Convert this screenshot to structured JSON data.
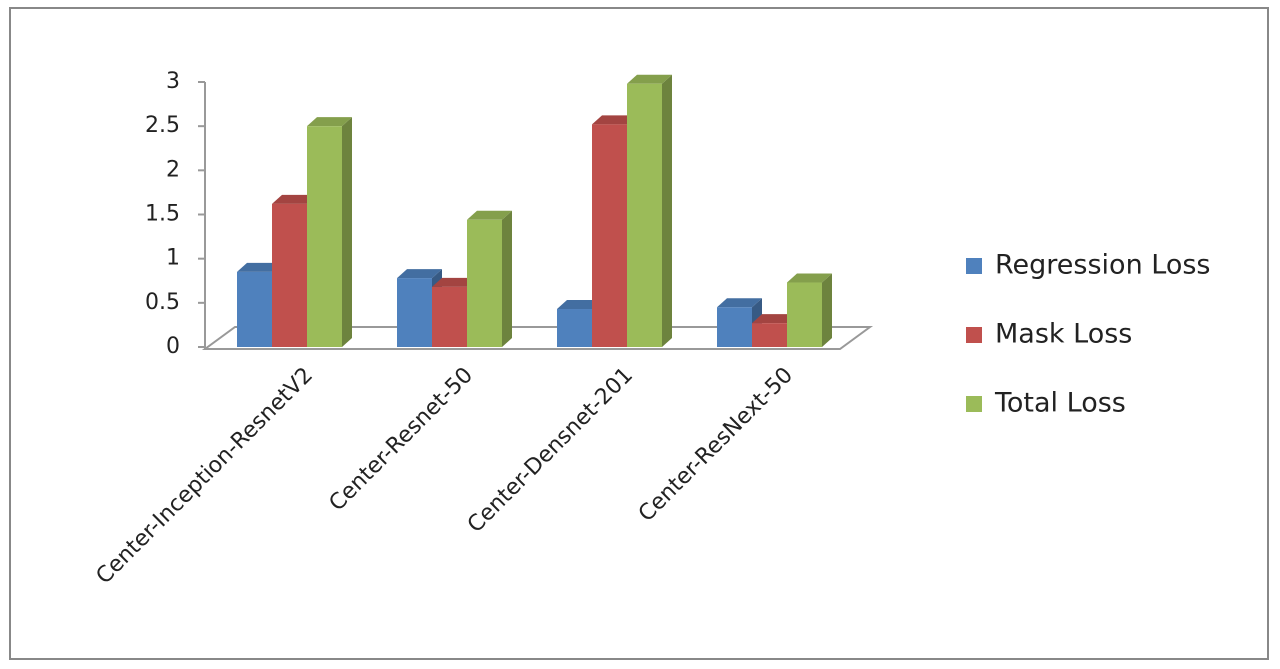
{
  "chart_data": {
    "type": "bar3d",
    "categories": [
      "Center-Inception-ResnetV2",
      "Center-Resnet-50",
      "Center-Densnet-201",
      "Center-ResNext-50"
    ],
    "series": [
      {
        "name": "Regression Loss",
        "color": "#4f81bd",
        "values": [
          0.85,
          0.78,
          0.43,
          0.45
        ]
      },
      {
        "name": "Mask Loss",
        "color": "#c0504d",
        "values": [
          1.62,
          0.68,
          2.52,
          0.27
        ]
      },
      {
        "name": "Total Loss",
        "color": "#9bbb59",
        "values": [
          2.5,
          1.44,
          2.98,
          0.73
        ]
      }
    ],
    "ylim": [
      0,
      3
    ],
    "yticks": [
      0,
      0.5,
      1,
      1.5,
      2,
      2.5,
      3
    ],
    "legend": "right"
  }
}
